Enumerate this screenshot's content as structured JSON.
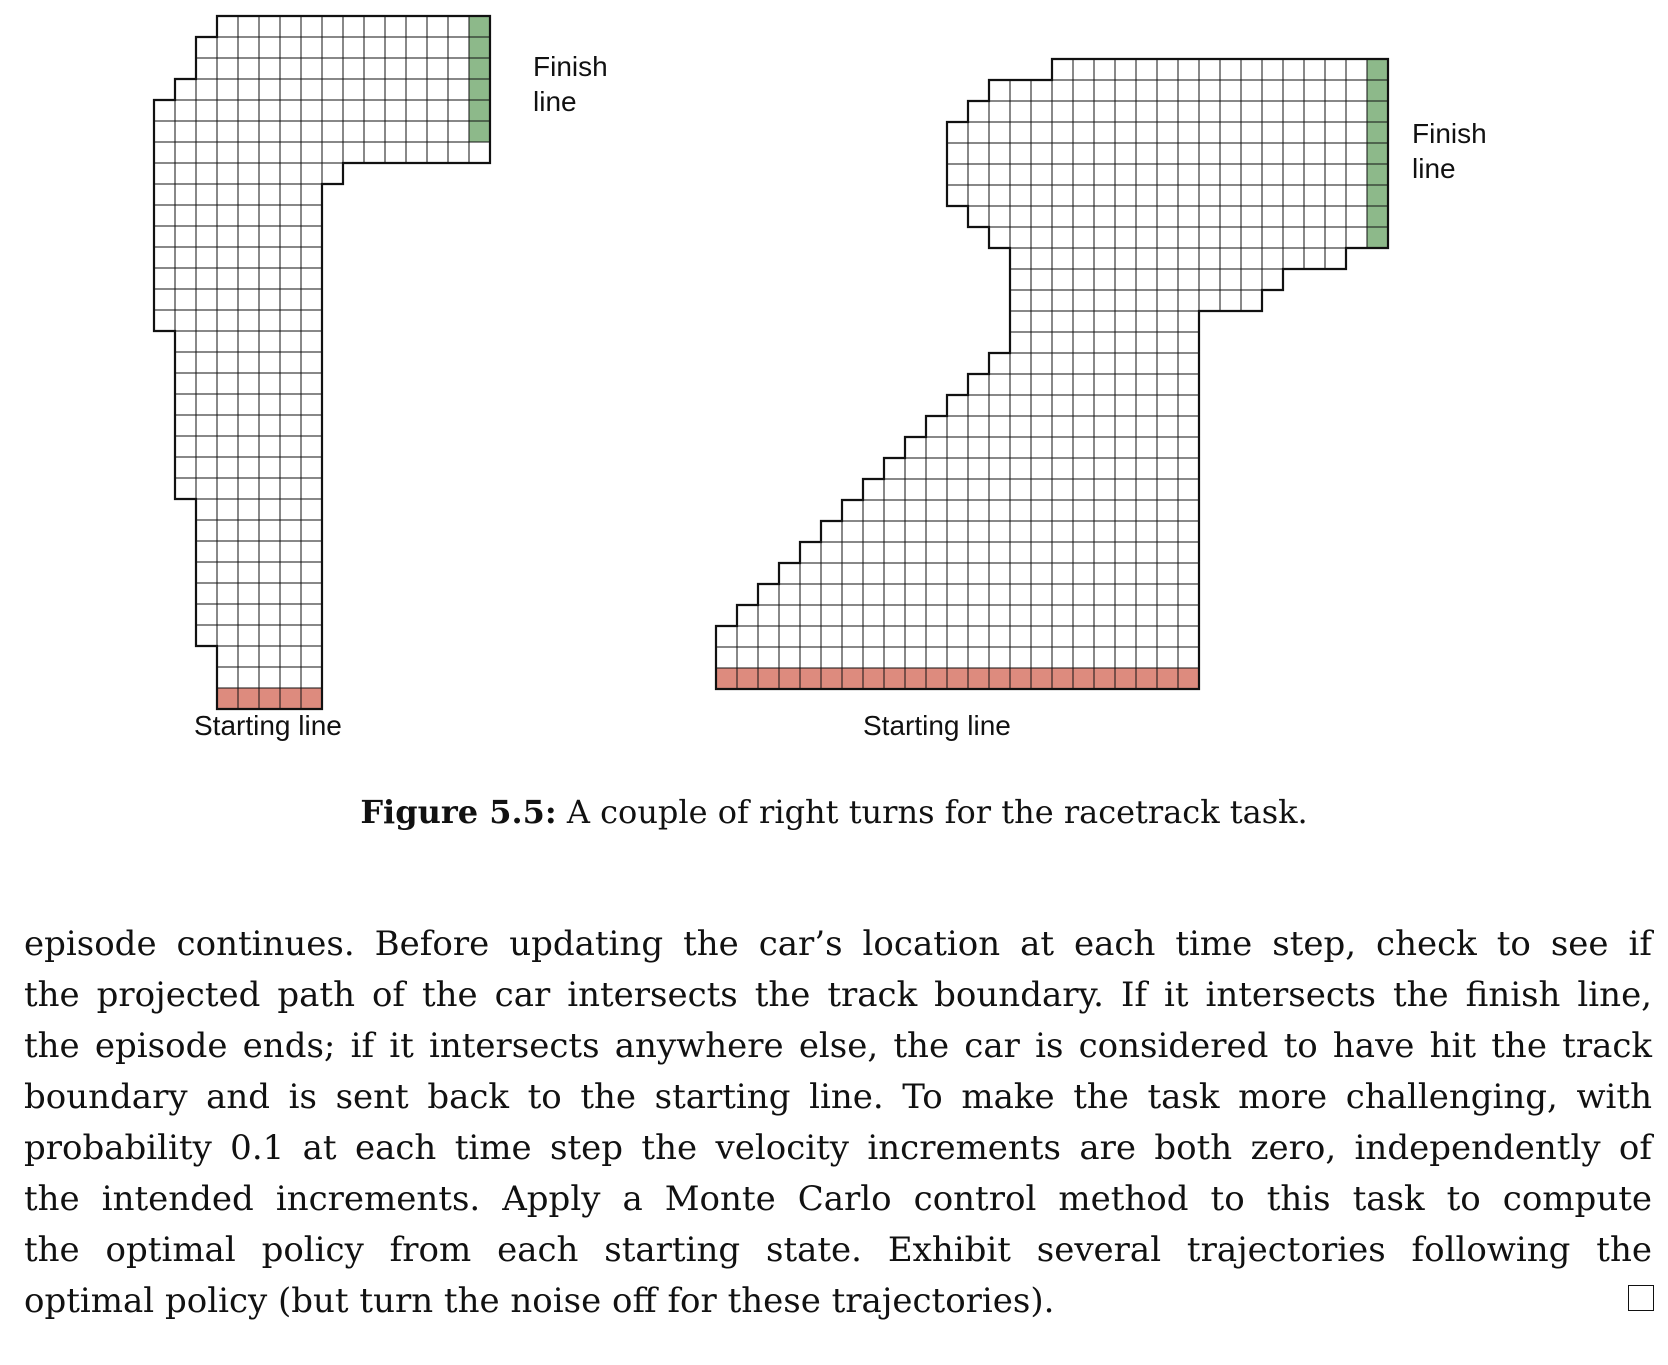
{
  "figure": {
    "tracks": [
      {
        "finish_label": [
          "Finish",
          "line"
        ],
        "start_label": "Starting line",
        "rows": [
          [
            3,
            16,
            0
          ],
          [
            2,
            16,
            0
          ],
          [
            2,
            16,
            0
          ],
          [
            1,
            16,
            0
          ],
          [
            0,
            16,
            0
          ],
          [
            0,
            16,
            0
          ],
          [
            0,
            16,
            0
          ],
          [
            0,
            9,
            0
          ],
          [
            0,
            8,
            0
          ],
          [
            0,
            8,
            0
          ],
          [
            0,
            8,
            0
          ],
          [
            0,
            8,
            0
          ],
          [
            0,
            8,
            0
          ],
          [
            0,
            8,
            0
          ],
          [
            0,
            8,
            0
          ],
          [
            1,
            8,
            0
          ],
          [
            1,
            8,
            0
          ],
          [
            1,
            8,
            0
          ],
          [
            1,
            8,
            0
          ],
          [
            1,
            8,
            0
          ],
          [
            1,
            8,
            0
          ],
          [
            1,
            8,
            0
          ],
          [
            1,
            8,
            0
          ],
          [
            2,
            8,
            0
          ],
          [
            2,
            8,
            0
          ],
          [
            2,
            8,
            0
          ],
          [
            2,
            8,
            0
          ],
          [
            2,
            8,
            0
          ],
          [
            2,
            8,
            0
          ],
          [
            2,
            8,
            0
          ],
          [
            3,
            8,
            0
          ],
          [
            3,
            8,
            0
          ],
          [
            3,
            8,
            1
          ]
        ],
        "finish_rows": [
          0,
          5
        ]
      },
      {
        "finish_label": [
          "Finish",
          "line"
        ],
        "start_label": "Starting line",
        "rows": [
          [
            16,
            32,
            0
          ],
          [
            13,
            32,
            0
          ],
          [
            12,
            32,
            0
          ],
          [
            11,
            32,
            0
          ],
          [
            11,
            32,
            0
          ],
          [
            11,
            32,
            0
          ],
          [
            11,
            32,
            0
          ],
          [
            12,
            32,
            0
          ],
          [
            13,
            32,
            0
          ],
          [
            14,
            30,
            0
          ],
          [
            14,
            27,
            0
          ],
          [
            14,
            26,
            0
          ],
          [
            14,
            23,
            0
          ],
          [
            14,
            23,
            0
          ],
          [
            13,
            23,
            0
          ],
          [
            12,
            23,
            0
          ],
          [
            11,
            23,
            0
          ],
          [
            10,
            23,
            0
          ],
          [
            9,
            23,
            0
          ],
          [
            8,
            23,
            0
          ],
          [
            7,
            23,
            0
          ],
          [
            6,
            23,
            0
          ],
          [
            5,
            23,
            0
          ],
          [
            4,
            23,
            0
          ],
          [
            3,
            23,
            0
          ],
          [
            2,
            23,
            0
          ],
          [
            1,
            23,
            0
          ],
          [
            0,
            23,
            0
          ],
          [
            0,
            23,
            0
          ],
          [
            0,
            23,
            1
          ]
        ],
        "finish_rows": [
          0,
          8
        ]
      }
    ],
    "caption_bold": "Figure 5.5:",
    "caption_text": "A couple of right turns for the racetrack task."
  },
  "body_lines": [
    "episode continues. Before updating the car’s location at each time step, check to see if",
    "the projected path of the car intersects the track boundary. If it intersects the finish line,",
    "the episode ends; if it intersects anywhere else, the car is considered to have hit the track",
    "boundary and is sent back to the starting line. To make the task more challenging, with",
    "probability 0.1 at each time step the velocity increments are both zero, independently of",
    "the intended increments. Apply a Monte Carlo control method to this task to compute",
    "the optimal policy from each starting state. Exhibit several trajectories following the",
    "optimal policy (but turn the noise off for these trajectories)."
  ],
  "colors": {
    "finish": "#8db98a",
    "start": "#dd8b7e",
    "grid": "#111111"
  }
}
